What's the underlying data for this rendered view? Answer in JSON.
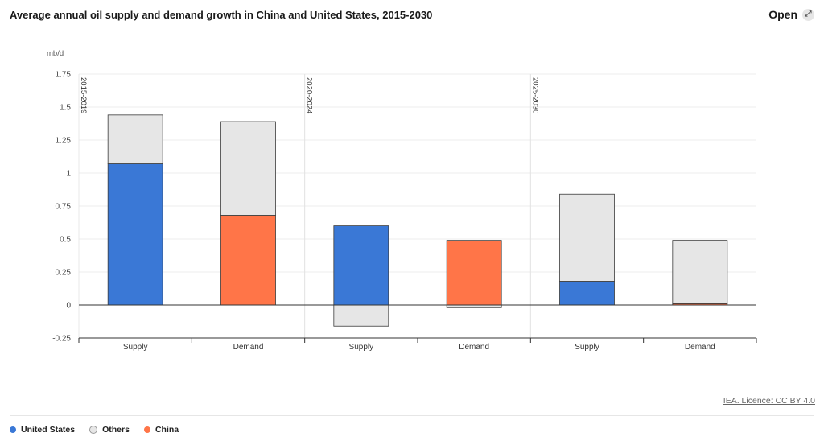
{
  "header": {
    "title": "Average annual oil supply and demand growth in China and United States, 2015-2030",
    "open_label": "Open",
    "open_icon": "expand-icon"
  },
  "licence": "IEA. Licence: CC BY 4.0",
  "legend": [
    {
      "label": "United States",
      "color": "#3a78d6"
    },
    {
      "label": "Others",
      "color": "#e6e6e6"
    },
    {
      "label": "China",
      "color": "#ff7548"
    }
  ],
  "chart_data": {
    "type": "bar",
    "stacked": true,
    "unit_label": "mb/d",
    "ylim": [
      -0.25,
      1.75
    ],
    "yticks": [
      "1.75",
      "1.5",
      "1.25",
      "1",
      "0.75",
      "0.5",
      "0.25",
      "0",
      "-0.25"
    ],
    "grid": true,
    "legend_position": "bottom-left",
    "periods": [
      "2015-2019",
      "2020-2024",
      "2025-2030"
    ],
    "categories": [
      "Supply",
      "Demand",
      "Supply",
      "Demand",
      "Supply",
      "Demand"
    ],
    "series": [
      {
        "name": "United States",
        "color": "#3a78d6",
        "values": [
          1.07,
          0,
          0.6,
          0,
          0.18,
          0
        ]
      },
      {
        "name": "China",
        "color": "#ff7548",
        "values": [
          0,
          0.68,
          0,
          0.49,
          0,
          0.01
        ]
      },
      {
        "name": "Others",
        "color": "#e6e6e6",
        "values": [
          0.37,
          0.71,
          -0.16,
          -0.02,
          0.66,
          0.48
        ]
      }
    ]
  }
}
